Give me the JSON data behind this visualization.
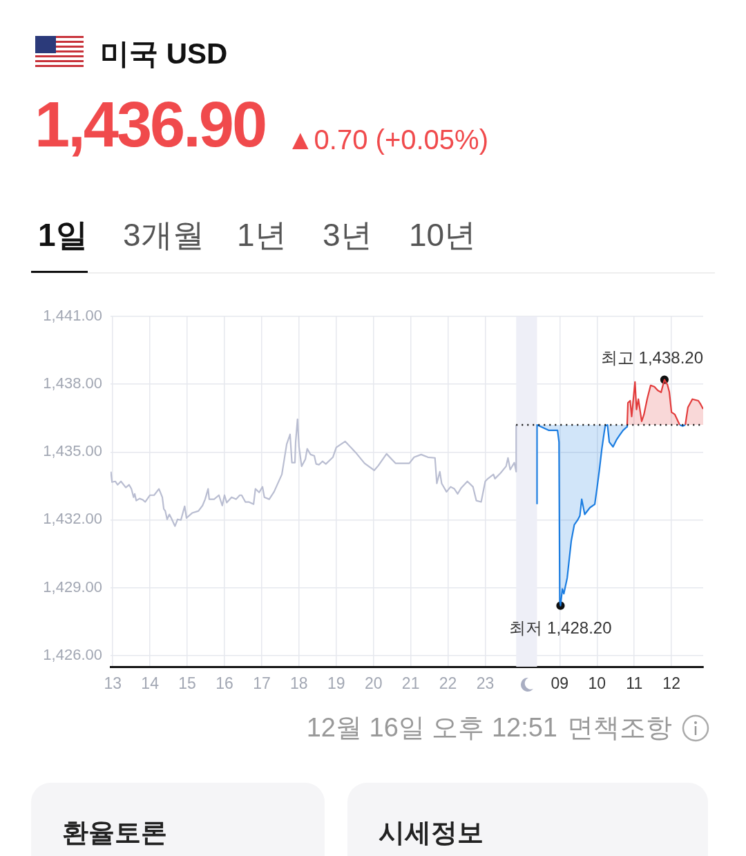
{
  "chart_data": {
    "type": "line",
    "title": "미국 USD",
    "subtitle": "1,436.90",
    "xlim": [
      12.94,
      28.85
    ],
    "xticks": [
      13,
      14,
      15,
      16,
      17,
      18,
      19,
      20,
      21,
      22,
      23
    ],
    "x2lim": [
      -3.06,
      12.85
    ],
    "x2ticks": [
      {
        "value": 9,
        "label": "09"
      },
      10,
      11,
      12
    ],
    "ylim": [
      1425.5,
      1441
    ],
    "yticks": [
      {
        "value": 1426,
        "label": "1,426.00"
      },
      {
        "value": 1429,
        "label": "1,429.00"
      },
      {
        "value": 1432,
        "label": "1,432.00"
      },
      {
        "value": 1435,
        "label": "1,435.00"
      },
      {
        "value": 1438,
        "label": "1,438.00"
      },
      {
        "value": 1441,
        "label": "1,441.00"
      }
    ],
    "grid": true,
    "legend": false,
    "marker": "none",
    "series": [
      {
        "color": "#b9bdd1",
        "x": [
          12.95,
          12.98,
          13.07,
          13.13,
          13.22,
          13.35,
          13.44,
          13.5,
          13.56,
          13.59,
          13.63,
          13.72,
          13.81,
          13.87,
          14,
          14.11,
          14.24,
          14.33,
          14.37,
          14.41,
          14.46,
          14.52,
          14.57,
          14.67,
          14.74,
          14.83,
          14.93,
          14.98,
          15.13,
          15.3,
          15.41,
          15.48,
          15.56,
          15.59,
          15.72,
          15.85,
          15.94,
          16,
          16.06,
          16.19,
          16.31,
          16.41,
          16.46,
          16.56,
          16.65,
          16.78,
          16.83,
          16.93,
          17.02,
          17.07,
          17.2,
          17.33,
          17.54,
          17.67,
          17.76,
          17.81,
          17.89,
          17.91,
          17.96,
          18,
          18.07,
          18.17,
          18.22,
          18.31,
          18.41,
          18.46,
          18.54,
          18.63,
          18.72,
          18.91,
          19,
          19.24,
          19.52,
          19.76,
          20.02,
          20.13,
          20.35,
          20.59,
          20.96,
          21.09,
          21.28,
          21.46,
          21.65,
          21.7,
          21.78,
          21.83,
          21.96,
          22.07,
          22.17,
          22.26,
          22.35,
          22.52,
          22.67,
          22.76,
          22.89,
          23,
          23.07,
          23.22,
          23.26,
          23.41,
          23.56,
          23.61,
          23.67,
          23.78,
          23.83,
          23.83
        ],
        "values": [
          1434.13,
          1433.67,
          1433.7,
          1433.55,
          1433.7,
          1433.43,
          1433.55,
          1433.37,
          1433,
          1433.15,
          1432.85,
          1432.94,
          1432.88,
          1432.79,
          1433.09,
          1433.09,
          1433.37,
          1433,
          1432.48,
          1432.39,
          1432.02,
          1432.24,
          1432.08,
          1431.72,
          1432.02,
          1431.99,
          1432.6,
          1432.08,
          1432.3,
          1432.39,
          1432.63,
          1432.91,
          1433.37,
          1432.91,
          1432.91,
          1433.09,
          1432.63,
          1433.09,
          1432.76,
          1433,
          1432.91,
          1433.09,
          1433.09,
          1432.79,
          1432.79,
          1432.69,
          1433.37,
          1433.21,
          1433.46,
          1433,
          1432.91,
          1433.24,
          1434.01,
          1435.35,
          1435.78,
          1434.53,
          1434.53,
          1435.44,
          1436.45,
          1435.23,
          1434.37,
          1434.68,
          1435.14,
          1434.89,
          1434.83,
          1434.47,
          1434.44,
          1434.59,
          1434.47,
          1434.77,
          1435.2,
          1435.47,
          1434.98,
          1434.5,
          1434.19,
          1434.4,
          1434.92,
          1434.5,
          1434.5,
          1434.77,
          1434.89,
          1434.77,
          1434.74,
          1433.61,
          1434.13,
          1433.61,
          1433.24,
          1433.46,
          1433.37,
          1433.15,
          1433.4,
          1433.7,
          1433.46,
          1432.85,
          1432.79,
          1433.7,
          1433.82,
          1434.01,
          1433.82,
          1434.07,
          1434.37,
          1434.74,
          1434.22,
          1434.53,
          1434.13,
          1436.2
        ]
      },
      {
        "type": "area",
        "axis": "x2",
        "color": "#1b7de1",
        "x": [
          8.39,
          8.39,
          8.7,
          8.94,
          8.98,
          9,
          9.02,
          9.07,
          9.11,
          9.2,
          9.26,
          9.31,
          9.39,
          9.48,
          9.54,
          9.59,
          9.67,
          9.81,
          9.94,
          10,
          10.06,
          10.13,
          10.19,
          10.22,
          10.28,
          10.33,
          10.43,
          10.52,
          10.61,
          10.7,
          10.8,
          10.81,
          11.5,
          12.22,
          12.3,
          12.37
        ],
        "values": [
          1432.69,
          1436.2,
          1435.96,
          1435.96,
          1435.44,
          1428.42,
          1428.2,
          1428.94,
          1428.73,
          1429.43,
          1430.34,
          1431.08,
          1431.78,
          1431.99,
          1432.18,
          1432.91,
          1432.24,
          1432.54,
          1432.69,
          1433.4,
          1434.16,
          1435.14,
          1435.84,
          1436.15,
          1436.2,
          1435.44,
          1435.23,
          1435.53,
          1435.75,
          1435.96,
          1436.11,
          1436.2,
          null,
          1436.2,
          1436.15,
          1436.2
        ]
      },
      {
        "type": "area",
        "axis": "x2",
        "color": "#e23b3b",
        "x": [
          10.81,
          10.83,
          10.89,
          10.93,
          11.02,
          11.06,
          11.11,
          11.2,
          11.26,
          11.35,
          11.44,
          11.54,
          11.63,
          11.72,
          11.81,
          11.89,
          11.94,
          12,
          12.09,
          12.22,
          12.3,
          12.37,
          12.44,
          12.56,
          12.72,
          12.78,
          12.85
        ],
        "values": [
          1436.2,
          1437.18,
          1437.27,
          1436.57,
          1438.1,
          1436.88,
          1437.34,
          1436.36,
          1436.66,
          1437.37,
          1437.95,
          1437.89,
          1437.73,
          1437.64,
          1438.2,
          1437.98,
          1437.67,
          1436.76,
          1436.66,
          1436.2,
          null,
          1436.2,
          1436.97,
          1437.34,
          1437.27,
          1437.12,
          1436.9
        ]
      },
      {
        "type": "scatter",
        "axis": "x2",
        "color": "#111111",
        "marker": "circle",
        "x": [
          11.81,
          9.02
        ],
        "values": [
          1438.2,
          1428.2
        ]
      }
    ],
    "ref_lines": [
      {
        "axis": "y",
        "value": 1436.2,
        "color": "#111111",
        "line_style": "dotted"
      }
    ],
    "bands": [
      {
        "axis": "x",
        "from": 23.83,
        "to": 24.39,
        "color": "#eeeff7"
      }
    ],
    "annotations": [
      "최고 1,438.20",
      "최저 1,428.20",
      "▲0.70 (+0.05%)",
      "1일",
      "3개월",
      "1년",
      "3년",
      "10년",
      "12월 16일 오후 12:51",
      "면책조항",
      "환율토론",
      "시세정보"
    ]
  }
}
